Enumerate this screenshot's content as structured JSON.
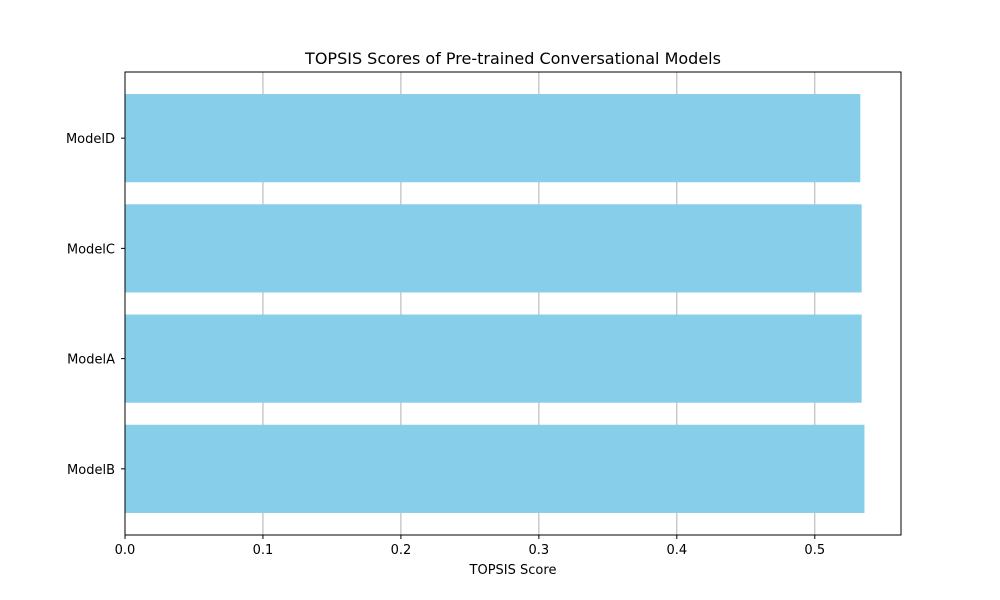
{
  "chart_data": {
    "type": "bar",
    "orientation": "horizontal",
    "title": "TOPSIS Scores of Pre-trained Conversational Models",
    "xlabel": "TOPSIS Score",
    "ylabel": "",
    "categories": [
      "ModelB",
      "ModelA",
      "ModelC",
      "ModelD"
    ],
    "values": [
      0.536,
      0.534,
      0.534,
      0.533
    ],
    "xlim": [
      0,
      0.5625
    ],
    "xticks": [
      "0.0",
      "0.1",
      "0.2",
      "0.3",
      "0.4",
      "0.5"
    ],
    "grid": "x",
    "bar_color": "#87CEEB",
    "grid_color": "#b0b0b0"
  }
}
